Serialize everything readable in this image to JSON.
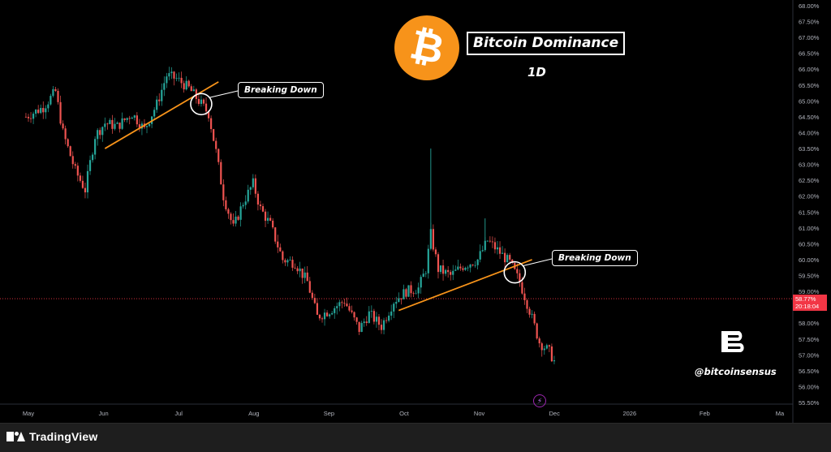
{
  "header": {
    "title": "Bitcoin Dominance",
    "timeframe": "1D",
    "logo_icon": "bitcoin-icon",
    "logo_color": "#f7931a"
  },
  "brand": {
    "handle": "@bitcoinsensus",
    "logo_icon": "bitcoinsensus-b-icon"
  },
  "annotations": [
    {
      "label": "Breaking Down"
    },
    {
      "label": "Breaking Down"
    }
  ],
  "price_tag": {
    "value": "58.77%",
    "countdown": "20:18:04",
    "color": "#f23645"
  },
  "footer": {
    "brand": "TradingView"
  },
  "colors": {
    "up": "#26a69a",
    "down": "#ef5350",
    "trendline": "#f7931a",
    "background": "#000000"
  },
  "chart_data": {
    "type": "candlestick",
    "x_ticks": [
      "May",
      "Jun",
      "Jul",
      "Aug",
      "Sep",
      "Oct",
      "Nov",
      "Dec",
      "2026",
      "Feb",
      "Ma"
    ],
    "y_ticks": [
      "55.50%",
      "56.00%",
      "56.50%",
      "57.00%",
      "57.50%",
      "58.00%",
      "58.50%",
      "59.00%",
      "59.50%",
      "60.00%",
      "60.50%",
      "61.00%",
      "61.50%",
      "62.00%",
      "62.50%",
      "63.00%",
      "63.50%",
      "64.00%",
      "64.50%",
      "65.00%",
      "65.50%",
      "66.00%",
      "66.50%",
      "67.00%",
      "67.50%",
      "68.00%"
    ],
    "ylim": [
      55.5,
      68.0
    ],
    "close_path": [
      [
        "2025-04-30",
        64.5
      ],
      [
        "2025-05-07",
        64.8
      ],
      [
        "2025-05-12",
        65.3
      ],
      [
        "2025-05-15",
        64.0
      ],
      [
        "2025-05-20",
        62.8
      ],
      [
        "2025-05-24",
        62.2
      ],
      [
        "2025-05-28",
        63.9
      ],
      [
        "2025-06-01",
        64.3
      ],
      [
        "2025-06-06",
        64.2
      ],
      [
        "2025-06-12",
        64.6
      ],
      [
        "2025-06-17",
        64.1
      ],
      [
        "2025-06-22",
        64.9
      ],
      [
        "2025-06-26",
        65.8
      ],
      [
        "2025-06-30",
        65.7
      ],
      [
        "2025-07-05",
        65.4
      ],
      [
        "2025-07-09",
        65.0
      ],
      [
        "2025-07-13",
        64.6
      ],
      [
        "2025-07-16",
        63.4
      ],
      [
        "2025-07-19",
        62.0
      ],
      [
        "2025-07-23",
        61.0
      ],
      [
        "2025-07-27",
        61.8
      ],
      [
        "2025-07-31",
        62.4
      ],
      [
        "2025-08-03",
        61.6
      ],
      [
        "2025-08-07",
        61.1
      ],
      [
        "2025-08-12",
        60.0
      ],
      [
        "2025-08-17",
        59.9
      ],
      [
        "2025-08-22",
        59.3
      ],
      [
        "2025-08-26",
        58.2
      ],
      [
        "2025-08-31",
        58.4
      ],
      [
        "2025-09-06",
        58.7
      ],
      [
        "2025-09-12",
        57.8
      ],
      [
        "2025-09-16",
        58.3
      ],
      [
        "2025-09-21",
        57.9
      ],
      [
        "2025-09-26",
        58.7
      ],
      [
        "2025-10-01",
        59.0
      ],
      [
        "2025-10-06",
        59.1
      ],
      [
        "2025-10-09",
        59.7
      ],
      [
        "2025-10-11",
        60.8
      ],
      [
        "2025-10-14",
        59.7
      ],
      [
        "2025-10-19",
        59.5
      ],
      [
        "2025-10-24",
        59.8
      ],
      [
        "2025-10-30",
        60.0
      ],
      [
        "2025-11-03",
        60.6
      ],
      [
        "2025-11-07",
        60.3
      ],
      [
        "2025-11-12",
        59.9
      ],
      [
        "2025-11-16",
        59.3
      ],
      [
        "2025-11-20",
        58.4
      ],
      [
        "2025-11-24",
        57.4
      ],
      [
        "2025-11-28",
        57.1
      ],
      [
        "2025-11-30",
        56.8
      ]
    ],
    "spikes": [
      {
        "date": "2025-10-11",
        "high": 63.5
      },
      {
        "date": "2025-11-02",
        "high": 61.3
      }
    ],
    "trendlines": [
      {
        "from": [
          "2025-06-01",
          63.5
        ],
        "to": [
          "2025-07-17",
          65.6
        ]
      },
      {
        "from": [
          "2025-09-28",
          58.4
        ],
        "to": [
          "2025-11-21",
          60.0
        ]
      }
    ],
    "breakdown_points": [
      {
        "date": "2025-07-10",
        "value": 64.9
      },
      {
        "date": "2025-11-14",
        "value": 59.6
      }
    ],
    "last_price": 58.77
  }
}
